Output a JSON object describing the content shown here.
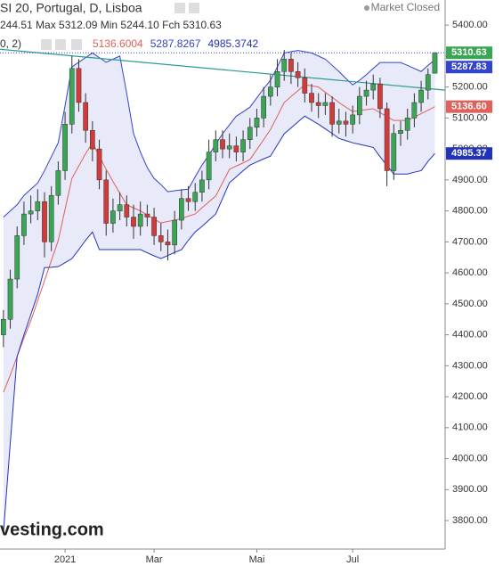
{
  "chart_data": {
    "type": "candlestick",
    "title": "SI 20, Portugal, D, Lisboa",
    "status": "Market Closed",
    "ohlc_legend": "244.51 Max 5312.09 Min 5244.10 Fch 5310.63",
    "indicator_legend": "0, 2)",
    "watermark": "vesting.com",
    "categories": [
      null,
      null,
      null,
      null,
      null,
      null,
      null,
      null,
      null,
      "2021",
      null,
      null,
      null,
      null,
      null,
      null,
      null,
      null,
      null,
      null,
      null,
      null,
      "Mar",
      null,
      null,
      null,
      null,
      null,
      null,
      null,
      null,
      null,
      null,
      null,
      null,
      null,
      null,
      "Mai",
      null,
      null,
      null,
      null,
      null,
      null,
      null,
      null,
      null,
      null,
      null,
      null,
      null,
      "Jul",
      null,
      null,
      null,
      null,
      null,
      null,
      null,
      null,
      null,
      null,
      null,
      null
    ],
    "open": [
      4400,
      4450,
      4580,
      4720,
      4790,
      4800,
      4830,
      4700,
      4850,
      4930,
      5080,
      5260,
      5150,
      5060,
      5000,
      4900,
      4760,
      4800,
      4820,
      4780,
      4750,
      4790,
      4780,
      4720,
      4700,
      4690,
      4770,
      4840,
      4830,
      4860,
      4900,
      4990,
      5030,
      5000,
      5010,
      4990,
      5030,
      5070,
      5100,
      5170,
      5200,
      5250,
      5290,
      5250,
      5230,
      5180,
      5150,
      5140,
      5150,
      5080,
      5090,
      5080,
      5110,
      5170,
      5190,
      5210,
      5130,
      4930,
      5050,
      5060,
      5100,
      5150,
      5190,
      5244.51
    ],
    "high": [
      4480,
      4610,
      4750,
      4830,
      4850,
      4870,
      4860,
      4880,
      4960,
      5120,
      5300,
      5290,
      5180,
      5090,
      5030,
      4930,
      4840,
      4860,
      4850,
      4820,
      4830,
      4820,
      4810,
      4760,
      4740,
      4800,
      4870,
      4880,
      4890,
      4930,
      5030,
      5060,
      5060,
      5050,
      5040,
      5060,
      5100,
      5130,
      5200,
      5240,
      5290,
      5320,
      5310,
      5280,
      5260,
      5210,
      5180,
      5180,
      5170,
      5130,
      5120,
      5140,
      5200,
      5220,
      5240,
      5230,
      5150,
      5080,
      5090,
      5130,
      5180,
      5220,
      5260,
      5312.09
    ],
    "low": [
      4360,
      4420,
      4550,
      4690,
      4760,
      4770,
      4650,
      4670,
      4820,
      4900,
      5050,
      5120,
      5020,
      4960,
      4870,
      4720,
      4730,
      4770,
      4750,
      4710,
      4720,
      4750,
      4690,
      4670,
      4640,
      4660,
      4740,
      4800,
      4800,
      4830,
      4870,
      4960,
      4970,
      4970,
      4960,
      4960,
      5000,
      5040,
      5070,
      5140,
      5170,
      5220,
      5210,
      5200,
      5150,
      5120,
      5100,
      5110,
      5040,
      5050,
      5040,
      5050,
      5080,
      5140,
      5160,
      5100,
      4880,
      4900,
      5010,
      5030,
      5070,
      5120,
      5160,
      5244.1
    ],
    "close": [
      4450,
      4580,
      4720,
      4790,
      4800,
      4830,
      4700,
      4850,
      4930,
      5080,
      5260,
      5150,
      5060,
      5000,
      4900,
      4760,
      4800,
      4820,
      4780,
      4750,
      4790,
      4780,
      4720,
      4700,
      4690,
      4770,
      4840,
      4830,
      4860,
      4900,
      4990,
      5030,
      5000,
      5010,
      4990,
      5030,
      5070,
      5100,
      5170,
      5200,
      5250,
      5290,
      5250,
      5230,
      5180,
      5150,
      5140,
      5150,
      5080,
      5090,
      5080,
      5110,
      5170,
      5190,
      5210,
      5130,
      4930,
      5050,
      5060,
      5100,
      5150,
      5190,
      5240,
      5310.63
    ],
    "close_tag": "5310.63",
    "up_color": "#3aa655",
    "down_color": "#d23b3b",
    "tag_color": "#3aa655",
    "series": [
      {
        "color": "#e0605a",
        "legend_value": "5136.6004",
        "tag": "5136.60",
        "values": [
          4214,
          4270,
          4330,
          4390,
          4445,
          4510,
          4575,
          4640,
          4704,
          4805,
          4905,
          4945,
          4985,
          5020,
          4977,
          4934,
          4895,
          4857,
          4819,
          4810,
          4800,
          4787,
          4774,
          4761,
          4766,
          4770,
          4775,
          4783,
          4790,
          4810,
          4829,
          4848,
          4891,
          4934,
          4945,
          4955,
          4966,
          4998,
          5030,
          5063,
          5106,
          5150,
          5169,
          5188,
          5207,
          5204,
          5200,
          5183,
          5167,
          5150,
          5135,
          5121,
          5124,
          5127,
          5130,
          5117,
          5105,
          5092,
          5092,
          5092,
          5103,
          5114,
          5125,
          5136.6
        ]
      },
      {
        "color": "#3344cc",
        "legend_value": "5287.8267",
        "tag": "5287.83",
        "values": [
          4780,
          4800,
          4820,
          4850,
          4870,
          4890,
          4930,
          4975,
          5020,
          5140,
          5265,
          5280,
          5295,
          5310,
          5295,
          5280,
          5290,
          5300,
          5180,
          5050,
          4990,
          4940,
          4905,
          4885,
          4862,
          4865,
          4868,
          4870,
          4910,
          4948,
          4980,
          5015,
          5049,
          5078,
          5106,
          5120,
          5135,
          5165,
          5195,
          5222,
          5265,
          5310,
          5314,
          5318,
          5314,
          5310,
          5300,
          5290,
          5270,
          5250,
          5228,
          5207,
          5222,
          5240,
          5260,
          5279,
          5279,
          5279,
          5279,
          5270,
          5260,
          5250,
          5270,
          5287.83
        ]
      },
      {
        "color": "#2233bb",
        "legend_value": "4985.3742",
        "tag": "4985.37",
        "values": [
          3760,
          4050,
          4330,
          4400,
          4465,
          4531,
          4617,
          4618,
          4620,
          4633,
          4646,
          4675,
          4705,
          4732,
          4675,
          4675,
          4675,
          4675,
          4675,
          4675,
          4675,
          4665,
          4655,
          4646,
          4656,
          4666,
          4675,
          4705,
          4732,
          4750,
          4770,
          4790,
          4840,
          4891,
          4910,
          4930,
          4948,
          4958,
          4968,
          4977,
          5013,
          5049,
          5068,
          5087,
          5106,
          5093,
          5080,
          5065,
          5050,
          5034,
          5027,
          5020,
          5015,
          5010,
          5005,
          4975,
          4947,
          4919,
          4919,
          4919,
          4925,
          4930,
          4960,
          4985.37
        ]
      }
    ],
    "band_fill": "rgba(110,120,220,0.16)",
    "trendline": [
      5322,
      5190
    ],
    "trend_color": "#2a9d8f",
    "ylim": [
      3711,
      5481
    ],
    "yticks": [
      {
        "value": 3800,
        "label": "3800.00"
      },
      {
        "value": 3900,
        "label": "3900.00"
      },
      {
        "value": 4000,
        "label": "4000.00"
      },
      {
        "value": 4100,
        "label": "4100.00"
      },
      {
        "value": 4200,
        "label": "4200.00"
      },
      {
        "value": 4300,
        "label": "4300.00"
      },
      {
        "value": 4400,
        "label": "4400.00"
      },
      {
        "value": 4500,
        "label": "4500.00"
      },
      {
        "value": 4600,
        "label": "4600.00"
      },
      {
        "value": 4700,
        "label": "4700.00"
      },
      {
        "value": 4800,
        "label": "4800.00"
      },
      {
        "value": 4900,
        "label": "4900.00"
      },
      {
        "value": 5000,
        "label": "5000.00"
      },
      {
        "value": 5100,
        "label": "5100.00"
      },
      {
        "value": 5200,
        "label": "5200.00"
      },
      {
        "value": 5300,
        "label": "5300.00"
      },
      {
        "value": 5400,
        "label": "5400.00"
      }
    ]
  }
}
